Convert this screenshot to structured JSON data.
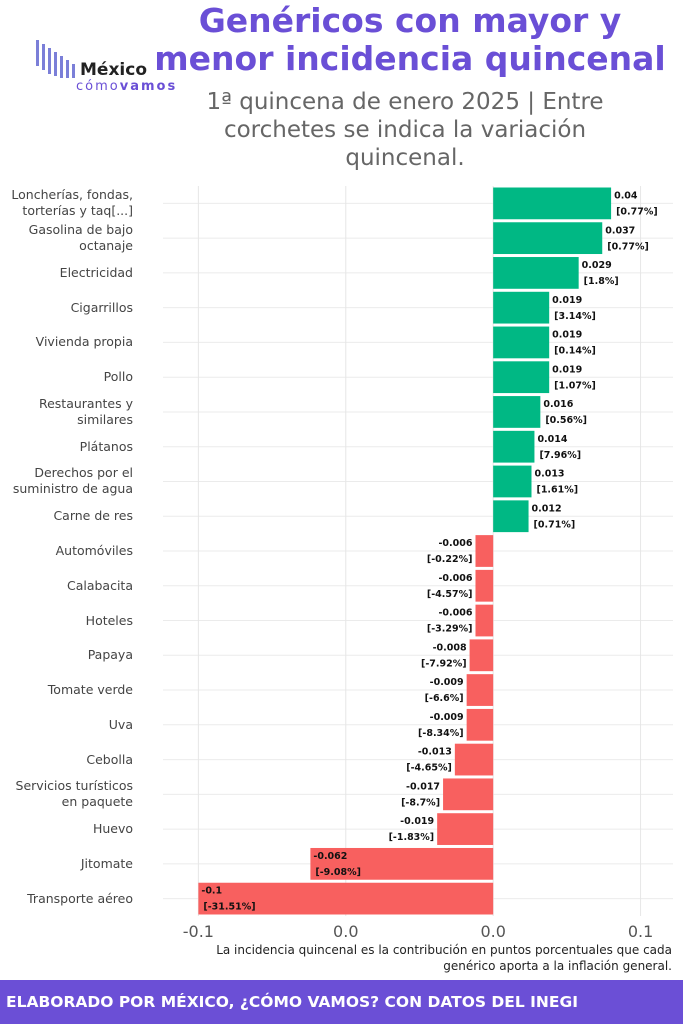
{
  "logo": {
    "name": "México",
    "tag1": "cómo",
    "tag2": "vamos"
  },
  "chart_data": {
    "type": "hbar",
    "title": "Genéricos con mayor y menor incidencia quincenal",
    "subtitle": "1ª quincena de enero 2025 | Entre corchetes se indica la variación quincenal.",
    "categories": [
      "Loncherías, fondas,\ntorterías y taq[...]",
      "Gasolina de bajo\noctanaje",
      "Electricidad",
      "Cigarrillos",
      "Vivienda propia",
      "Pollo",
      "Restaurantes y\nsimilares",
      "Plátanos",
      "Derechos por el\nsuministro de agua",
      "Carne de res",
      "Automóviles",
      "Calabacita",
      "Hoteles",
      "Papaya",
      "Tomate verde",
      "Uva",
      "Cebolla",
      "Servicios turísticos\nen paquete",
      "Huevo",
      "Jitomate",
      "Transporte aéreo"
    ],
    "values": [
      0.04,
      0.037,
      0.029,
      0.019,
      0.019,
      0.019,
      0.016,
      0.014,
      0.013,
      0.012,
      -0.006,
      -0.006,
      -0.006,
      -0.008,
      -0.009,
      -0.009,
      -0.013,
      -0.017,
      -0.019,
      -0.062,
      -0.1
    ],
    "variation_labels": [
      "[0.77%]",
      "[0.77%]",
      "[1.8%]",
      "[3.14%]",
      "[0.14%]",
      "[1.07%]",
      "[0.56%]",
      "[7.96%]",
      "[1.61%]",
      "[0.71%]",
      "[-0.22%]",
      "[-4.57%]",
      "[-3.29%]",
      "[-7.92%]",
      "[-6.6%]",
      "[-8.34%]",
      "[-4.65%]",
      "[-8.7%]",
      "[-1.83%]",
      "[-9.08%]",
      "[-31.51%]"
    ],
    "positive_color": "#00b884",
    "negative_color": "#f8605f",
    "xlim": [
      -0.112,
      0.061
    ],
    "xticks": [
      -0.1,
      {
        "value": -0.05,
        "label": "0.0"
      },
      {
        "value": 0,
        "label": "0.0"
      },
      {
        "value": 0.05,
        "label": "0.1"
      }
    ],
    "grid": true,
    "note": "La incidencia quincenal es la contribución en puntos porcentuales que cada genérico aporta a la inflación general.",
    "footer": "ELABORADO POR MÉXICO, ¿CÓMO VAMOS? CON DATOS DEL INEGI"
  }
}
